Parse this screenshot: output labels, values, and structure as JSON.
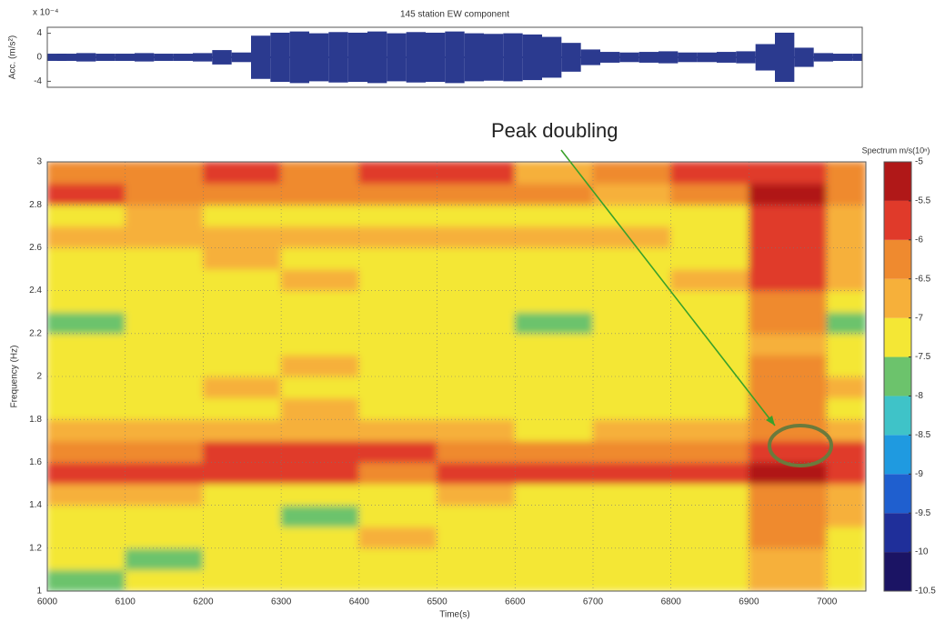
{
  "chart_data": [
    {
      "type": "envelope",
      "title": "145 station EW component",
      "ylabel": "Acc. (m/s²)",
      "scale_label": "x 10⁻⁴",
      "x": [
        6000,
        6025,
        6050,
        6075,
        6100,
        6125,
        6150,
        6175,
        6200,
        6225,
        6250,
        6275,
        6300,
        6325,
        6350,
        6375,
        6400,
        6425,
        6450,
        6475,
        6500,
        6525,
        6550,
        6575,
        6600,
        6625,
        6650,
        6675,
        6700,
        6725,
        6750,
        6775,
        6800,
        6825,
        6850,
        6875,
        6900,
        6925,
        6950,
        6975,
        7000,
        7025,
        7050
      ],
      "values": [
        0.6,
        0.6,
        0.7,
        0.6,
        0.6,
        0.7,
        0.6,
        0.6,
        0.7,
        1.2,
        0.8,
        3.6,
        4.1,
        4.3,
        4.0,
        4.2,
        4.1,
        4.3,
        4.0,
        4.2,
        4.1,
        4.3,
        4.0,
        3.9,
        4.0,
        3.8,
        3.4,
        2.4,
        1.3,
        0.9,
        0.8,
        0.9,
        1.0,
        0.8,
        0.8,
        0.9,
        1.0,
        2.2,
        4.1,
        1.6,
        0.7,
        0.6,
        0.6
      ],
      "color": "#2b3a8f",
      "xlim": [
        6000,
        7050
      ],
      "ylim": [
        -5,
        5
      ],
      "yticks": [
        -4,
        0,
        4
      ]
    },
    {
      "type": "contour",
      "xlabel": "Time(s)",
      "ylabel": "Frequency (Hz)",
      "colorbar_title": "Spectrum m/s(10ⁿ)",
      "annotation": "Peak doubling",
      "x_edges": [
        6000,
        6100,
        6200,
        6300,
        6400,
        6500,
        6600,
        6700,
        6800,
        6900,
        7000,
        7050
      ],
      "y_edges": [
        1.0,
        1.1,
        1.2,
        1.3,
        1.4,
        1.5,
        1.6,
        1.7,
        1.8,
        1.9,
        2.0,
        2.1,
        2.2,
        2.3,
        2.4,
        2.5,
        2.6,
        2.7,
        2.8,
        2.9,
        3.0
      ],
      "z": [
        [
          -7.6,
          -7.2,
          -7.3,
          -7.2,
          -7.5,
          -7.3,
          -7.2,
          -7.4,
          -7.2,
          -7.0,
          -7.3
        ],
        [
          -7.2,
          -7.6,
          -7.2,
          -7.2,
          -7.2,
          -7.2,
          -7.3,
          -7.2,
          -7.2,
          -6.8,
          -7.4
        ],
        [
          -7.2,
          -7.2,
          -7.4,
          -7.2,
          -6.9,
          -7.2,
          -7.2,
          -7.2,
          -7.2,
          -6.5,
          -7.2
        ],
        [
          -7.2,
          -7.2,
          -7.2,
          -7.6,
          -7.2,
          -7.2,
          -7.2,
          -7.2,
          -7.2,
          -6.4,
          -7.0
        ],
        [
          -6.9,
          -7.0,
          -7.2,
          -7.2,
          -7.2,
          -7.0,
          -7.2,
          -7.2,
          -7.2,
          -6.3,
          -6.6
        ],
        [
          -5.8,
          -5.7,
          -5.8,
          -5.8,
          -6.4,
          -5.9,
          -5.8,
          -5.8,
          -5.8,
          -5.3,
          -5.6
        ],
        [
          -6.3,
          -6.5,
          -6.0,
          -6.0,
          -6.0,
          -6.1,
          -6.4,
          -6.4,
          -6.3,
          -5.6,
          -5.9
        ],
        [
          -6.7,
          -6.8,
          -6.8,
          -6.9,
          -7.0,
          -7.0,
          -7.1,
          -6.8,
          -6.7,
          -6.3,
          -6.8
        ],
        [
          -7.2,
          -7.2,
          -7.2,
          -6.9,
          -7.2,
          -7.2,
          -7.2,
          -7.3,
          -7.2,
          -6.5,
          -7.2
        ],
        [
          -7.3,
          -7.2,
          -6.9,
          -7.2,
          -7.2,
          -7.2,
          -7.2,
          -7.2,
          -7.2,
          -6.5,
          -7.0
        ],
        [
          -7.2,
          -7.2,
          -7.2,
          -6.9,
          -7.2,
          -7.3,
          -7.2,
          -7.5,
          -7.2,
          -6.4,
          -7.2
        ],
        [
          -7.2,
          -7.5,
          -7.2,
          -7.2,
          -7.2,
          -7.2,
          -7.2,
          -7.2,
          -7.5,
          -6.6,
          -7.2
        ],
        [
          -7.7,
          -7.2,
          -7.2,
          -7.5,
          -7.4,
          -7.5,
          -7.6,
          -7.2,
          -7.2,
          -6.4,
          -7.6
        ],
        [
          -7.2,
          -7.2,
          -7.2,
          -7.2,
          -7.3,
          -7.2,
          -7.2,
          -7.2,
          -7.2,
          -6.2,
          -7.2
        ],
        [
          -7.2,
          -7.2,
          -7.2,
          -6.9,
          -7.4,
          -7.2,
          -7.2,
          -7.2,
          -6.9,
          -5.8,
          -6.8
        ],
        [
          -7.2,
          -7.2,
          -6.8,
          -7.2,
          -7.2,
          -7.2,
          -7.2,
          -7.2,
          -7.2,
          -5.8,
          -6.8
        ],
        [
          -6.6,
          -6.7,
          -6.6,
          -6.6,
          -6.8,
          -6.7,
          -6.8,
          -7.0,
          -7.2,
          -5.8,
          -6.6
        ],
        [
          -7.2,
          -7.0,
          -7.2,
          -7.2,
          -7.2,
          -7.2,
          -7.2,
          -7.2,
          -7.2,
          -5.6,
          -6.6
        ],
        [
          -6.0,
          -6.5,
          -6.4,
          -6.5,
          -6.3,
          -6.2,
          -6.5,
          -6.6,
          -6.4,
          -5.3,
          -6.4
        ],
        [
          -6.5,
          -6.3,
          -6.0,
          -6.3,
          -6.0,
          -6.0,
          -6.6,
          -6.1,
          -6.0,
          -5.8,
          -6.4
        ]
      ],
      "xlim": [
        6000,
        7050
      ],
      "ylim": [
        1,
        3
      ],
      "xticks": [
        6000,
        6100,
        6200,
        6300,
        6400,
        6500,
        6600,
        6700,
        6800,
        6900,
        7000
      ],
      "yticks": [
        1,
        1.2,
        1.4,
        1.6,
        1.8,
        2,
        2.2,
        2.4,
        2.6,
        2.8,
        3
      ],
      "clim": [
        -10.5,
        -5
      ],
      "cticks": [
        -10.5,
        -10,
        -9.5,
        -9,
        -8.5,
        -8,
        -7.5,
        -7,
        -6.5,
        -6,
        -5.5,
        -5
      ],
      "colormap": [
        "#1b1464",
        "#1f2f9a",
        "#1f5fcf",
        "#1f9ae0",
        "#3fc3c8",
        "#6cc36c",
        "#f4e735",
        "#f6b03a",
        "#ef8a2f",
        "#e03a2a",
        "#b01818"
      ],
      "grid": true
    }
  ]
}
